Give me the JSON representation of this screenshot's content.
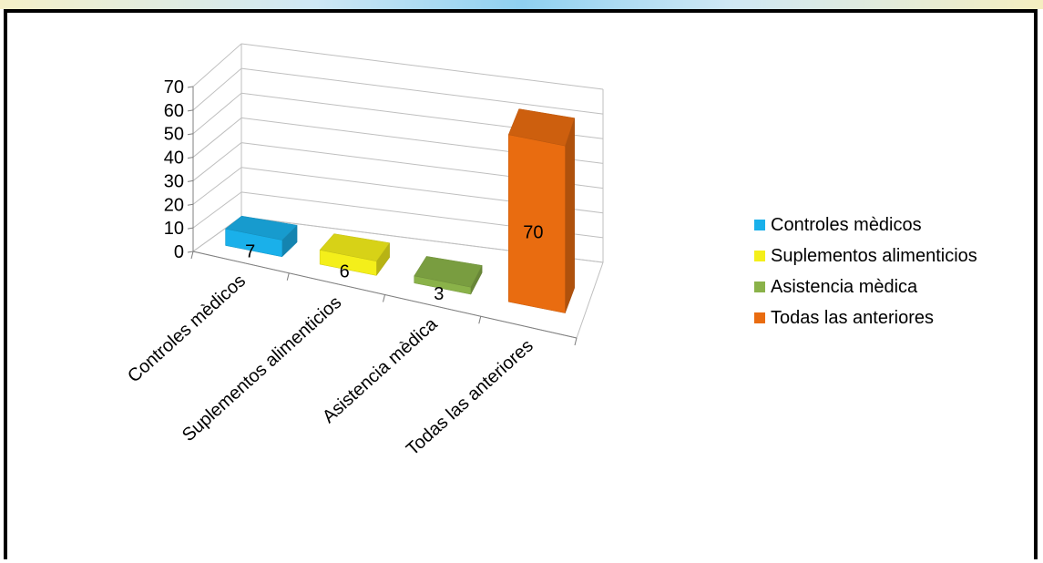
{
  "chart_data": {
    "type": "bar",
    "categories": [
      "Controles mèdicos",
      "Suplementos alimenticios",
      "Asistencia mèdica",
      "Todas las anteriores"
    ],
    "values": [
      7,
      6,
      3,
      70
    ],
    "data_labels": [
      "7",
      "6",
      "3",
      "70"
    ],
    "ylim": [
      0,
      70
    ],
    "yticks": [
      "0",
      "10",
      "20",
      "30",
      "40",
      "50",
      "60",
      "70"
    ],
    "grid": true,
    "legend_position": "right",
    "colors": [
      "#1ab0ea",
      "#f4ef1a",
      "#8ab249",
      "#e96c10"
    ],
    "title": "",
    "xlabel": "",
    "ylabel": ""
  },
  "legend": {
    "items": [
      {
        "label": "Controles mèdicos",
        "color": "#1ab0ea"
      },
      {
        "label": "Suplementos alimenticios",
        "color": "#f4ef1a"
      },
      {
        "label": "Asistencia mèdica",
        "color": "#8ab249"
      },
      {
        "label": "Todas las anteriores",
        "color": "#e96c10"
      }
    ]
  }
}
